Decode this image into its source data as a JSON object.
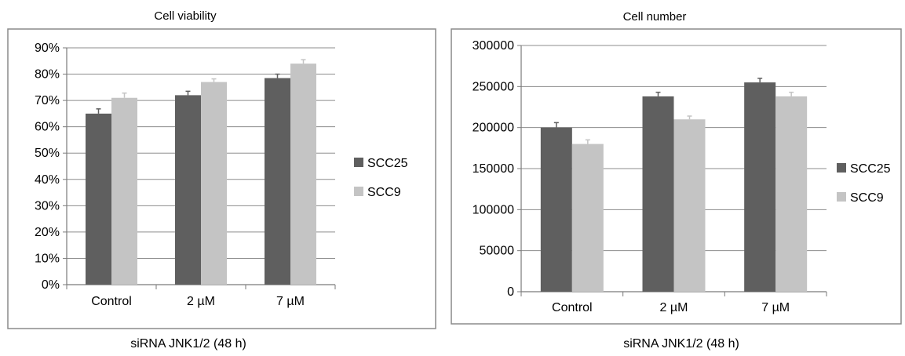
{
  "colors": {
    "series_dark": "#5f5f5f",
    "series_light": "#c4c4c4",
    "gridline": "#8c8c8c",
    "axis": "#7a7a7a",
    "frame": "#8a8a8a"
  },
  "chart_data": [
    {
      "type": "bar",
      "title": "Cell  viability",
      "xlabel": "siRNA JNK1/2 (48 h)",
      "ylabel": "",
      "categories": [
        "Control",
        "2 µM",
        "7 µM"
      ],
      "series": [
        {
          "name": "SCC25",
          "values": [
            0.65,
            0.72,
            0.785
          ],
          "error": [
            0.018,
            0.015,
            0.015
          ]
        },
        {
          "name": "SCC9",
          "values": [
            0.71,
            0.77,
            0.84
          ],
          "error": [
            0.018,
            0.012,
            0.015
          ]
        }
      ],
      "ylim": [
        0,
        0.9
      ],
      "yticks": [
        0,
        0.1,
        0.2,
        0.3,
        0.4,
        0.5,
        0.6,
        0.7,
        0.8,
        0.9
      ],
      "ytick_labels": [
        "0%",
        "10%",
        "20%",
        "30%",
        "40%",
        "50%",
        "60%",
        "70%",
        "80%",
        "90%"
      ],
      "grid": true,
      "legend_position": "right"
    },
    {
      "type": "bar",
      "title": "Cell number",
      "xlabel": "siRNA JNK1/2 (48 h)",
      "ylabel": "",
      "categories": [
        "Control",
        "2 µM",
        "7 µM"
      ],
      "series": [
        {
          "name": "SCC25",
          "values": [
            200000,
            238000,
            255000
          ],
          "error": [
            6000,
            5000,
            5000
          ]
        },
        {
          "name": "SCC9",
          "values": [
            180000,
            210000,
            238000
          ],
          "error": [
            5000,
            4000,
            5000
          ]
        }
      ],
      "ylim": [
        0,
        300000
      ],
      "yticks": [
        0,
        50000,
        100000,
        150000,
        200000,
        250000,
        300000
      ],
      "ytick_labels": [
        "0",
        "50000",
        "100000",
        "150000",
        "200000",
        "250000",
        "300000"
      ],
      "grid": true,
      "legend_position": "right"
    }
  ]
}
